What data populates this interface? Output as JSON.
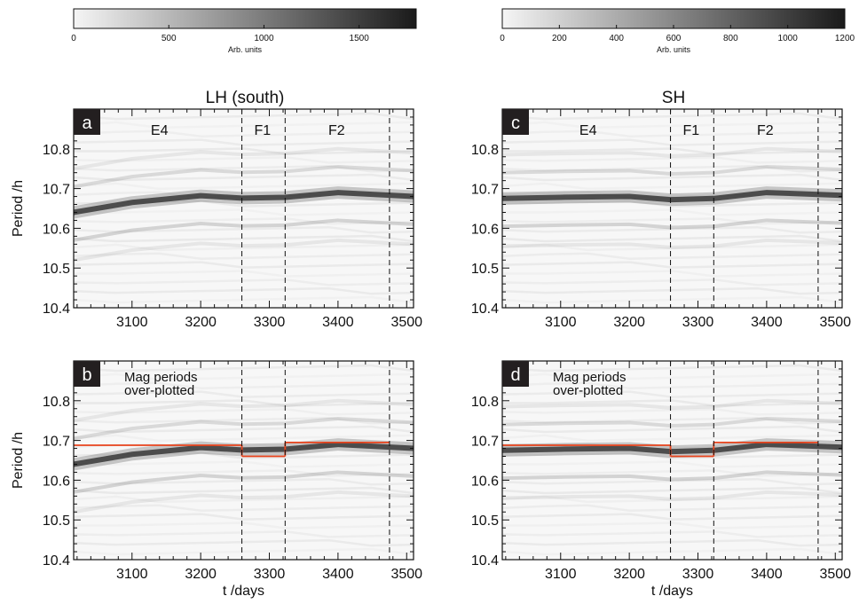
{
  "colorbars": [
    {
      "ticks": [
        0,
        500,
        1000,
        1500
      ],
      "max": 1800,
      "label": "Arb. units"
    },
    {
      "ticks": [
        0,
        200,
        400,
        600,
        800,
        1000,
        1200
      ],
      "max": 1200,
      "label": "Arb. units"
    }
  ],
  "column_titles": [
    "LH (south)",
    "SH"
  ],
  "chart_data": [
    {
      "type": "heatmap",
      "panel": "a",
      "xlim": [
        3015,
        3510
      ],
      "ylim": [
        10.4,
        10.9
      ],
      "xticks": [
        3100,
        3200,
        3300,
        3400,
        3500
      ],
      "yticks": [
        10.4,
        10.5,
        10.6,
        10.7,
        10.8
      ],
      "ylabel": "Period /h",
      "xlabel": "",
      "segments": [
        {
          "label": "E4",
          "x": 3140
        },
        {
          "label": "F1",
          "x": 3290
        },
        {
          "label": "F2",
          "x": 3398
        }
      ],
      "dividers": [
        3260,
        3323,
        3475
      ],
      "band": {
        "x": [
          3015,
          3100,
          3200,
          3260,
          3323,
          3400,
          3510
        ],
        "y": [
          10.64,
          10.665,
          10.682,
          10.676,
          10.678,
          10.69,
          10.68
        ]
      },
      "colorbar": 0
    },
    {
      "type": "heatmap",
      "panel": "b",
      "xlim": [
        3015,
        3510
      ],
      "ylim": [
        10.4,
        10.9
      ],
      "xticks": [
        3100,
        3200,
        3300,
        3400,
        3500
      ],
      "yticks": [
        10.4,
        10.5,
        10.6,
        10.7,
        10.8
      ],
      "ylabel": "Period /h",
      "xlabel": "t /days",
      "annotation": [
        "Mag periods",
        "over-plotted"
      ],
      "dividers": [
        3260,
        3323,
        3475
      ],
      "band": {
        "x": [
          3015,
          3100,
          3200,
          3260,
          3323,
          3400,
          3510
        ],
        "y": [
          10.64,
          10.665,
          10.682,
          10.676,
          10.678,
          10.69,
          10.68
        ]
      },
      "mag_periods": [
        {
          "x": [
            3015,
            3260
          ],
          "y": 10.688
        },
        {
          "x": [
            3260,
            3323
          ],
          "y": 10.66
        },
        {
          "x": [
            3323,
            3475
          ],
          "y": 10.695
        }
      ],
      "mag_color": "#e8431c",
      "colorbar": 0
    },
    {
      "type": "heatmap",
      "panel": "c",
      "xlim": [
        3015,
        3510
      ],
      "ylim": [
        10.4,
        10.9
      ],
      "xticks": [
        3100,
        3200,
        3300,
        3400,
        3500
      ],
      "yticks": [
        10.4,
        10.5,
        10.6,
        10.7,
        10.8
      ],
      "ylabel": "",
      "xlabel": "",
      "segments": [
        {
          "label": "E4",
          "x": 3140
        },
        {
          "label": "F1",
          "x": 3290
        },
        {
          "label": "F2",
          "x": 3398
        }
      ],
      "dividers": [
        3260,
        3323,
        3475
      ],
      "band": {
        "x": [
          3015,
          3100,
          3200,
          3260,
          3323,
          3400,
          3510
        ],
        "y": [
          10.675,
          10.678,
          10.68,
          10.672,
          10.675,
          10.69,
          10.683
        ]
      },
      "colorbar": 1
    },
    {
      "type": "heatmap",
      "panel": "d",
      "xlim": [
        3015,
        3510
      ],
      "ylim": [
        10.4,
        10.9
      ],
      "xticks": [
        3100,
        3200,
        3300,
        3400,
        3500
      ],
      "yticks": [
        10.4,
        10.5,
        10.6,
        10.7,
        10.8
      ],
      "ylabel": "",
      "xlabel": "t /days",
      "annotation": [
        "Mag periods",
        "over-plotted"
      ],
      "dividers": [
        3260,
        3323,
        3475
      ],
      "band": {
        "x": [
          3015,
          3100,
          3200,
          3260,
          3323,
          3400,
          3510
        ],
        "y": [
          10.675,
          10.678,
          10.68,
          10.672,
          10.675,
          10.69,
          10.683
        ]
      },
      "mag_periods": [
        {
          "x": [
            3015,
            3260
          ],
          "y": 10.688
        },
        {
          "x": [
            3260,
            3323
          ],
          "y": 10.66
        },
        {
          "x": [
            3323,
            3475
          ],
          "y": 10.695
        }
      ],
      "mag_color": "#e8431c",
      "colorbar": 1
    }
  ]
}
